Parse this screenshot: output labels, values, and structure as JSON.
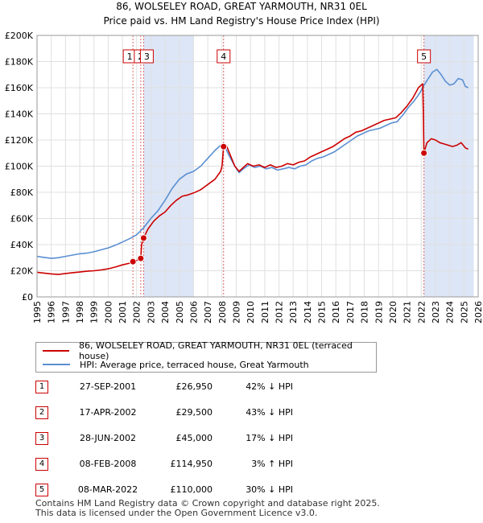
{
  "chart_data": {
    "type": "line",
    "title": "86, WOLSELEY ROAD, GREAT YARMOUTH, NR31 0EL",
    "subtitle": "Price paid vs. HM Land Registry's House Price Index (HPI)",
    "x_ticks": [
      "1995",
      "1996",
      "1997",
      "1998",
      "1999",
      "2000",
      "2001",
      "2002",
      "2003",
      "2004",
      "2005",
      "2006",
      "2007",
      "2008",
      "2009",
      "2010",
      "2011",
      "2012",
      "2013",
      "2014",
      "2015",
      "2016",
      "2017",
      "2018",
      "2019",
      "2020",
      "2021",
      "2022",
      "2023",
      "2024",
      "2025",
      "2026"
    ],
    "y_ticks": [
      "£0",
      "£20K",
      "£40K",
      "£60K",
      "£80K",
      "£100K",
      "£120K",
      "£140K",
      "£160K",
      "£180K",
      "£200K"
    ],
    "xlim": [
      1995,
      2026
    ],
    "ylim": [
      0,
      200000
    ],
    "series": [
      {
        "name": "86, WOLSELEY ROAD, GREAT YARMOUTH, NR31 0EL (terraced house)",
        "color": "#cc0000",
        "points": [
          [
            1995.0,
            18800
          ],
          [
            1995.5,
            18200
          ],
          [
            1996.0,
            17600
          ],
          [
            1996.5,
            17200
          ],
          [
            1997.0,
            17900
          ],
          [
            1997.5,
            18500
          ],
          [
            1998.0,
            19000
          ],
          [
            1998.5,
            19600
          ],
          [
            1999.0,
            20000
          ],
          [
            1999.5,
            20600
          ],
          [
            2000.0,
            21500
          ],
          [
            2000.5,
            22800
          ],
          [
            2001.0,
            24500
          ],
          [
            2001.5,
            25800
          ],
          [
            2001.74,
            26950
          ],
          [
            2002.0,
            27800
          ],
          [
            2002.29,
            29500
          ],
          [
            2002.35,
            40000
          ],
          [
            2002.49,
            45000
          ],
          [
            2002.8,
            52000
          ],
          [
            2003.2,
            58000
          ],
          [
            2003.6,
            62000
          ],
          [
            2004.0,
            65000
          ],
          [
            2004.4,
            70000
          ],
          [
            2004.8,
            74000
          ],
          [
            2005.2,
            77000
          ],
          [
            2005.6,
            78000
          ],
          [
            2006.0,
            79500
          ],
          [
            2006.5,
            82000
          ],
          [
            2007.0,
            86000
          ],
          [
            2007.5,
            90000
          ],
          [
            2007.9,
            96000
          ],
          [
            2008.0,
            100000
          ],
          [
            2008.11,
            114950
          ],
          [
            2008.3,
            116000
          ],
          [
            2008.6,
            108000
          ],
          [
            2008.9,
            100000
          ],
          [
            2009.2,
            96000
          ],
          [
            2009.5,
            99000
          ],
          [
            2009.8,
            102000
          ],
          [
            2010.2,
            100000
          ],
          [
            2010.6,
            101000
          ],
          [
            2011.0,
            99000
          ],
          [
            2011.4,
            101000
          ],
          [
            2011.8,
            99000
          ],
          [
            2012.2,
            100000
          ],
          [
            2012.6,
            102000
          ],
          [
            2013.0,
            101000
          ],
          [
            2013.4,
            103000
          ],
          [
            2013.8,
            104000
          ],
          [
            2014.2,
            107000
          ],
          [
            2014.6,
            109000
          ],
          [
            2015.0,
            111000
          ],
          [
            2015.4,
            113000
          ],
          [
            2015.8,
            115000
          ],
          [
            2016.2,
            118000
          ],
          [
            2016.6,
            121000
          ],
          [
            2017.0,
            123000
          ],
          [
            2017.4,
            126000
          ],
          [
            2017.8,
            127000
          ],
          [
            2018.2,
            129000
          ],
          [
            2018.6,
            131000
          ],
          [
            2019.0,
            133000
          ],
          [
            2019.4,
            135000
          ],
          [
            2019.8,
            136000
          ],
          [
            2020.2,
            137000
          ],
          [
            2020.6,
            141000
          ],
          [
            2021.0,
            146000
          ],
          [
            2021.4,
            152000
          ],
          [
            2021.8,
            160000
          ],
          [
            2022.1,
            163000
          ],
          [
            2022.15,
            140000
          ],
          [
            2022.19,
            110000
          ],
          [
            2022.4,
            118000
          ],
          [
            2022.7,
            121000
          ],
          [
            2023.0,
            120000
          ],
          [
            2023.3,
            118000
          ],
          [
            2023.6,
            117000
          ],
          [
            2023.9,
            116000
          ],
          [
            2024.2,
            115000
          ],
          [
            2024.5,
            116000
          ],
          [
            2024.8,
            118000
          ],
          [
            2025.1,
            114000
          ],
          [
            2025.3,
            113000
          ]
        ]
      },
      {
        "name": "HPI: Average price, terraced house, Great Yarmouth",
        "color": "#5b8fd1",
        "points": [
          [
            1995.0,
            31000
          ],
          [
            1995.5,
            30200
          ],
          [
            1996.0,
            29500
          ],
          [
            1996.5,
            30000
          ],
          [
            1997.0,
            31000
          ],
          [
            1997.5,
            32000
          ],
          [
            1998.0,
            33000
          ],
          [
            1998.5,
            33500
          ],
          [
            1999.0,
            34500
          ],
          [
            1999.5,
            36000
          ],
          [
            2000.0,
            37500
          ],
          [
            2000.5,
            39500
          ],
          [
            2001.0,
            42000
          ],
          [
            2001.5,
            44500
          ],
          [
            2002.0,
            47500
          ],
          [
            2002.5,
            53000
          ],
          [
            2003.0,
            60000
          ],
          [
            2003.5,
            66000
          ],
          [
            2004.0,
            74000
          ],
          [
            2004.5,
            83000
          ],
          [
            2005.0,
            90000
          ],
          [
            2005.5,
            94000
          ],
          [
            2006.0,
            96000
          ],
          [
            2006.5,
            100000
          ],
          [
            2007.0,
            106000
          ],
          [
            2007.5,
            112000
          ],
          [
            2007.9,
            116000
          ],
          [
            2008.2,
            115000
          ],
          [
            2008.5,
            108000
          ],
          [
            2008.9,
            100000
          ],
          [
            2009.2,
            95000
          ],
          [
            2009.5,
            98000
          ],
          [
            2009.9,
            101000
          ],
          [
            2010.3,
            99000
          ],
          [
            2010.7,
            100000
          ],
          [
            2011.1,
            98000
          ],
          [
            2011.5,
            99000
          ],
          [
            2011.9,
            97000
          ],
          [
            2012.3,
            98000
          ],
          [
            2012.7,
            99000
          ],
          [
            2013.1,
            98000
          ],
          [
            2013.5,
            100000
          ],
          [
            2013.9,
            101000
          ],
          [
            2014.3,
            104000
          ],
          [
            2014.7,
            106000
          ],
          [
            2015.1,
            107000
          ],
          [
            2015.5,
            109000
          ],
          [
            2015.9,
            111000
          ],
          [
            2016.3,
            114000
          ],
          [
            2016.7,
            117000
          ],
          [
            2017.1,
            120000
          ],
          [
            2017.5,
            123000
          ],
          [
            2017.9,
            125000
          ],
          [
            2018.3,
            127000
          ],
          [
            2018.7,
            128000
          ],
          [
            2019.1,
            129000
          ],
          [
            2019.5,
            131000
          ],
          [
            2019.9,
            133000
          ],
          [
            2020.3,
            134000
          ],
          [
            2020.7,
            139000
          ],
          [
            2021.1,
            145000
          ],
          [
            2021.5,
            150000
          ],
          [
            2021.9,
            156000
          ],
          [
            2022.2,
            162000
          ],
          [
            2022.5,
            167000
          ],
          [
            2022.8,
            172000
          ],
          [
            2023.1,
            174000
          ],
          [
            2023.4,
            170000
          ],
          [
            2023.7,
            165000
          ],
          [
            2024.0,
            162000
          ],
          [
            2024.3,
            163000
          ],
          [
            2024.6,
            167000
          ],
          [
            2024.9,
            166000
          ],
          [
            2025.1,
            161000
          ],
          [
            2025.3,
            160000
          ]
        ]
      }
    ],
    "transactions": [
      {
        "id": "1",
        "x": 2001.74,
        "y": 26950,
        "date": "27-SEP-2001",
        "price": "£26,950",
        "hpi": "42% ↓ HPI"
      },
      {
        "id": "2",
        "x": 2002.29,
        "y": 29500,
        "date": "17-APR-2002",
        "price": "£29,500",
        "hpi": "43% ↓ HPI"
      },
      {
        "id": "3",
        "x": 2002.49,
        "y": 45000,
        "date": "28-JUN-2002",
        "price": "£45,000",
        "hpi": "17% ↓ HPI"
      },
      {
        "id": "4",
        "x": 2008.11,
        "y": 114950,
        "date": "08-FEB-2008",
        "price": "£114,950",
        "hpi": "3% ↑ HPI"
      },
      {
        "id": "5",
        "x": 2022.19,
        "y": 110000,
        "date": "08-MAR-2022",
        "price": "£110,000",
        "hpi": "30% ↓ HPI"
      }
    ],
    "colors": {
      "property": "#cc0000",
      "hpi": "#5b8fd1",
      "shade": "#dde6f6",
      "grid": "#e0e0e0",
      "vline": "#dd6666"
    }
  },
  "footer": {
    "line1": "Contains HM Land Registry data © Crown copyright and database right 2025.",
    "line2": "This data is licensed under the Open Government Licence v3.0."
  }
}
